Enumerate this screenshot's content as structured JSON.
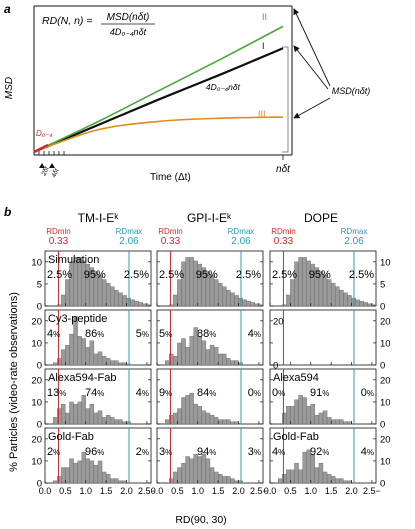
{
  "figure": {
    "panel_a": {
      "label": "a",
      "formula_lhs": "RD(N, n) =",
      "formula_num": "MSD(nδt)",
      "formula_den": "4D₀₋₄nδt",
      "ylabel": "MSD",
      "xlabel": "Time (Δt)",
      "xend_label": "nδt",
      "d_label": "D₀₋₄",
      "tick_labels": [
        "2δt",
        "4δt"
      ],
      "curve_labels": [
        "II",
        "I",
        "III"
      ],
      "line_label": "4D₀₋₄nδt",
      "msd_label": "MSD(nδt)",
      "colors": {
        "II": "#4aa63c",
        "I": "#111111",
        "III": "#e08a1e",
        "D": "#cc2b2b"
      }
    },
    "panel_b": {
      "label": "b",
      "columns": [
        "TM-I-Eᵏ",
        "GPI-I-Eᵏ",
        "DOPE"
      ],
      "rd_min_label": "RDmin",
      "rd_max_label": "RDmax",
      "rd_min_value": "0.33",
      "rd_max_value": "2.06",
      "rd_min_color": "#cc2b2b",
      "rd_max_color": "#2a9bb5",
      "ylabel": "% Particles (video-rate observations)",
      "xlabel": "RD(90, 30)",
      "x_ticks": [
        "0.0",
        "0.5",
        "1.0",
        "1.5",
        "2.0",
        "2.5"
      ],
      "x_tick_last_suffix": "−",
      "percent_sign": "%",
      "rows": [
        {
          "name": "Simulation",
          "labels": [
            "Simulation",
            "",
            ""
          ],
          "pct": [
            [
              "2.5",
              "95",
              "2.5"
            ],
            [
              "2.5",
              "95",
              "2.5"
            ],
            [
              "2.5",
              "95",
              "2.5"
            ]
          ],
          "y_ticks_left": [
            "0",
            "5",
            "10"
          ],
          "y_ticks_right": [
            "0",
            "5",
            "10"
          ]
        },
        {
          "name": "Cy3-peptide",
          "labels": [
            "Cy3-peptide",
            "",
            ""
          ],
          "pct": [
            [
              "4",
              "86",
              "5"
            ],
            [
              "5",
              "88",
              "4"
            ],
            [
              "",
              "",
              ""
            ]
          ],
          "y_ticks_left": [
            "0",
            "10",
            "20"
          ],
          "y_ticks_right": [
            "0",
            "10",
            "20"
          ],
          "y_ticks_mid_col3": [
            "0",
            "20"
          ]
        },
        {
          "name": "Alexa594-Fab",
          "labels": [
            "Alexa594-Fab",
            "",
            "Alexa594"
          ],
          "pct": [
            [
              "13",
              "74",
              "4"
            ],
            [
              "9",
              "84",
              "0"
            ],
            [
              "0",
              "91",
              "0"
            ]
          ],
          "y_ticks_left": [
            "0",
            "10",
            "20"
          ],
          "y_ticks_right": [
            "0",
            "10",
            "20"
          ]
        },
        {
          "name": "Gold-Fab",
          "labels": [
            "Gold-Fab",
            "",
            "Gold-Fab"
          ],
          "pct": [
            [
              "2",
              "96",
              "2"
            ],
            [
              "3",
              "94",
              "3"
            ],
            [
              "4",
              "92",
              "4"
            ]
          ],
          "y_ticks_left": [
            "0",
            "10",
            "20"
          ],
          "y_ticks_right": [
            "0",
            "10",
            "20"
          ]
        }
      ]
    }
  },
  "chart_data": [
    {
      "type": "line",
      "title": "",
      "xlabel": "Time (Δt)",
      "ylabel": "MSD",
      "x": [
        0,
        0.25,
        0.5,
        0.75,
        1.0
      ],
      "series": [
        {
          "name": "I",
          "values": [
            0,
            0.24,
            0.48,
            0.71,
            0.95
          ]
        },
        {
          "name": "II",
          "values": [
            0,
            0.27,
            0.56,
            0.85,
            1.15
          ]
        },
        {
          "name": "III",
          "values": [
            0,
            0.2,
            0.28,
            0.31,
            0.32
          ]
        }
      ],
      "ylim": [
        0,
        1.3
      ]
    },
    {
      "type": "bar",
      "title": "",
      "xlabel": "RD(90, 30)",
      "ylabel": "% Particles (video-rate observations)",
      "bin_width": 0.1,
      "bin_start": 0.0,
      "xlim": [
        0,
        2.6
      ],
      "panels": [
        {
          "row": 0,
          "col": 0,
          "ymax": 12,
          "values": [
            0,
            0,
            0,
            0.3,
            2.5,
            6,
            10,
            11,
            11,
            10.2,
            9.5,
            8.7,
            7.8,
            7,
            6,
            5.2,
            4.4,
            3.6,
            3,
            2.4,
            1.8,
            1.4,
            1.1,
            0.8,
            0.5,
            0.3
          ]
        },
        {
          "row": 0,
          "col": 1,
          "ymax": 12,
          "values": [
            0,
            0,
            0,
            0.3,
            2.5,
            6,
            10,
            11,
            11,
            10.2,
            9.5,
            8.7,
            7.8,
            7,
            6,
            5.2,
            4.4,
            3.6,
            3,
            2.4,
            1.8,
            1.4,
            1.1,
            0.8,
            0.5,
            0.3
          ]
        },
        {
          "row": 0,
          "col": 2,
          "ymax": 12,
          "values": [
            0,
            0,
            0,
            0.3,
            2.5,
            6,
            10,
            11,
            11,
            10.2,
            9.5,
            8.7,
            7.8,
            7,
            6,
            5.2,
            4.4,
            3.6,
            3,
            2.4,
            1.8,
            1.4,
            1.1,
            0.8,
            0.5,
            0.3
          ]
        },
        {
          "row": 1,
          "col": 0,
          "ymax": 24,
          "values": [
            0,
            0,
            1,
            3,
            7,
            9,
            14,
            22,
            13,
            12,
            8,
            11,
            5,
            6,
            4,
            3,
            2,
            2,
            1,
            1,
            0.5,
            0,
            0,
            0,
            0,
            0
          ]
        },
        {
          "row": 1,
          "col": 1,
          "ymax": 24,
          "values": [
            0,
            0,
            2,
            5,
            4,
            10,
            12,
            8,
            13,
            17,
            13,
            11,
            7,
            9,
            8,
            5,
            5,
            3,
            2,
            2,
            1,
            0,
            0,
            0,
            0,
            0
          ]
        },
        {
          "row": 1,
          "col": 2,
          "ymax": 24,
          "values": []
        },
        {
          "row": 2,
          "col": 0,
          "ymax": 24,
          "values": [
            0,
            0,
            3,
            7,
            9,
            5,
            10,
            9,
            10,
            13,
            7,
            9,
            5,
            6,
            3,
            4,
            3,
            2,
            2,
            1,
            1,
            0,
            0,
            0,
            0,
            0
          ]
        },
        {
          "row": 2,
          "col": 1,
          "ymax": 24,
          "values": [
            0,
            0,
            2,
            4,
            5,
            7,
            12,
            13,
            14,
            9,
            8,
            6,
            5,
            4,
            3,
            2,
            2,
            2,
            1,
            1,
            0,
            0,
            0,
            0,
            0,
            0
          ]
        },
        {
          "row": 2,
          "col": 2,
          "ymax": 24,
          "values": [
            0,
            0,
            0,
            5,
            8,
            8,
            11,
            13,
            12,
            8,
            9,
            4,
            5,
            6,
            3,
            2,
            2,
            2,
            1,
            1,
            0,
            0,
            0,
            0,
            0,
            0
          ]
        },
        {
          "row": 3,
          "col": 0,
          "ymax": 24,
          "values": [
            0,
            0,
            1,
            3,
            7,
            7,
            11,
            9,
            10,
            14,
            11,
            10,
            8,
            10,
            5,
            4,
            2,
            2,
            1,
            1,
            0,
            0,
            0,
            0,
            0,
            0
          ]
        },
        {
          "row": 3,
          "col": 1,
          "ymax": 24,
          "values": [
            0,
            0,
            0,
            2,
            5,
            7,
            9,
            12,
            11,
            13,
            12,
            13,
            11,
            7,
            5,
            4,
            3,
            3,
            2,
            1,
            1,
            0,
            0,
            0,
            0,
            0
          ]
        },
        {
          "row": 3,
          "col": 2,
          "ymax": 24,
          "values": [
            0,
            0,
            2,
            4,
            6,
            6,
            9,
            6,
            14,
            15,
            13,
            7,
            9,
            5,
            4,
            3,
            2,
            2,
            1,
            1,
            0,
            0,
            0,
            0,
            0,
            0
          ]
        }
      ]
    }
  ]
}
